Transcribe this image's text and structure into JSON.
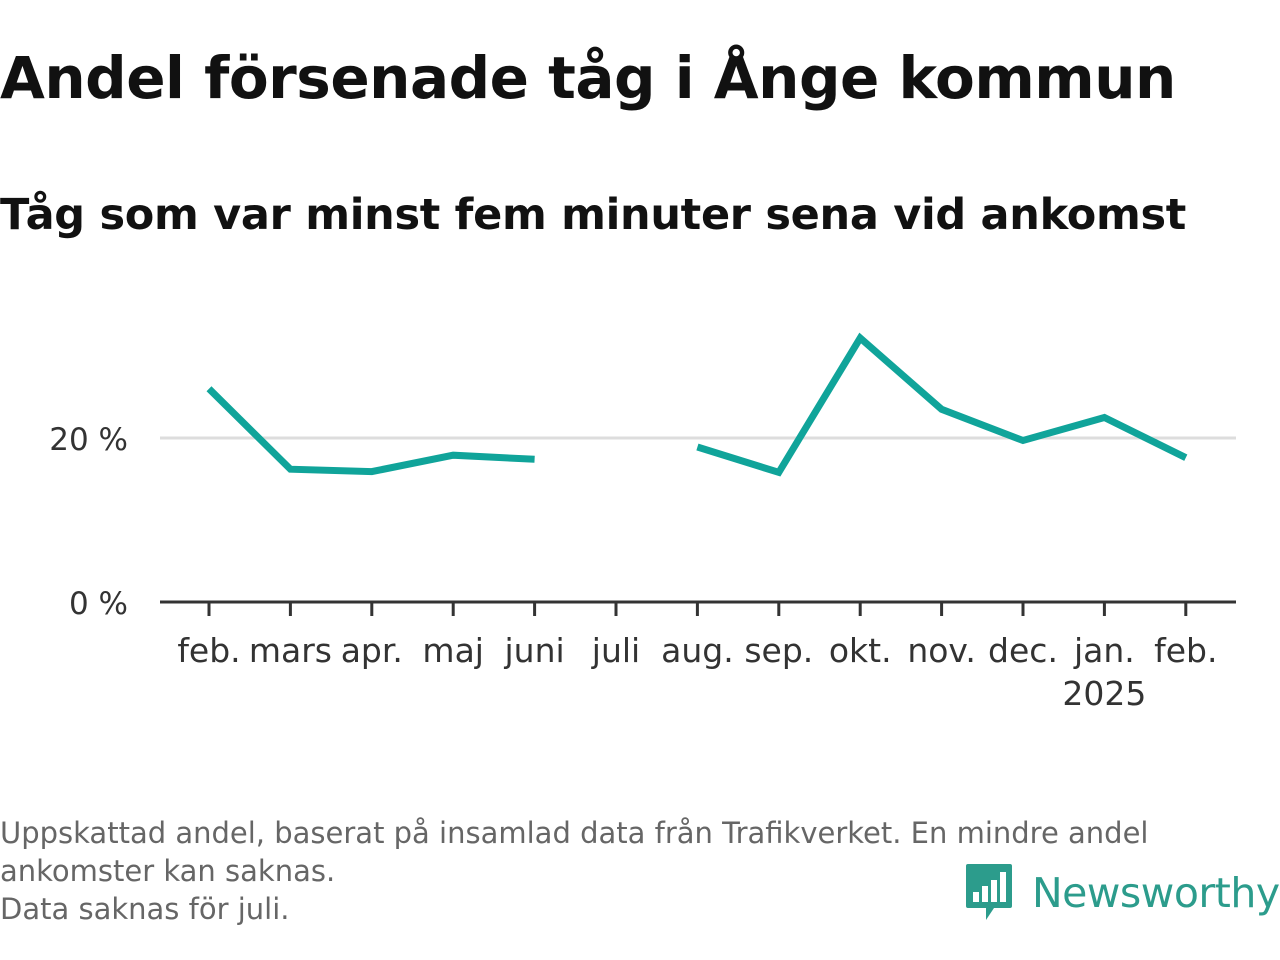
{
  "title": "Andel försenade tåg i Ånge kommun",
  "subtitle": "Tåg som var minst fem minuter sena vid ankomst",
  "footnote": {
    "line1": "Uppskattad andel, baserat på insamlad data från Trafikverket. En mindre andel",
    "line2": "ankomster kan saknas.",
    "line3": "Data saknas för juli."
  },
  "brand": {
    "name": "Newsworthy",
    "icon": "newsworthy-chat-bars-icon",
    "color": "#2c9c8c"
  },
  "chart_data": {
    "type": "line",
    "categories": [
      "feb.",
      "mars",
      "apr.",
      "maj",
      "juni",
      "juli",
      "aug.",
      "sep.",
      "okt.",
      "nov.",
      "dec.",
      "jan.",
      "feb."
    ],
    "year_labels": [
      "",
      "",
      "",
      "",
      "",
      "",
      "",
      "",
      "",
      "",
      "",
      "2025",
      ""
    ],
    "series": [
      {
        "values": [
          26.0,
          16.2,
          15.9,
          17.9,
          17.4,
          null,
          18.9,
          15.8,
          32.2,
          23.5,
          19.7,
          22.5,
          17.6
        ],
        "color": "#10a49a"
      }
    ],
    "ylim": [
      0,
      35
    ],
    "yticks": [
      {
        "value": 0,
        "label": "0 %"
      },
      {
        "value": 20,
        "label": "20 %"
      }
    ],
    "grid": true,
    "legend": "none",
    "xlabel": "",
    "ylabel": ""
  }
}
